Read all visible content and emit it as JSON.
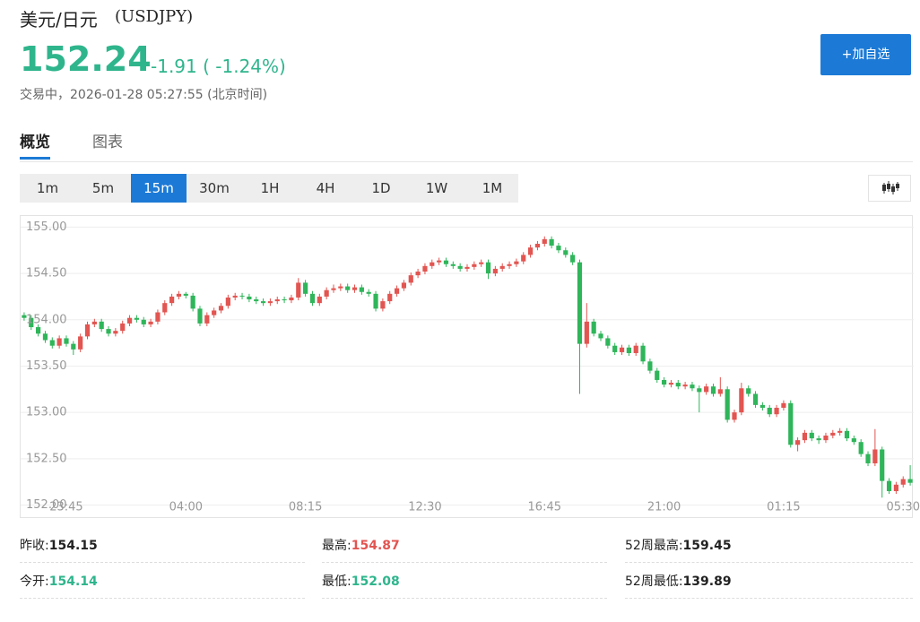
{
  "header": {
    "title": "美元/日元",
    "symbol": "(USDJPY)",
    "price": "152.24",
    "change": "-1.91 ( -1.24%)",
    "status": "交易中，2026-01-28 05:27:55 (北京时间)",
    "button": "+加自选"
  },
  "tabs": {
    "items": [
      "概览",
      "图表"
    ],
    "active": 0
  },
  "intervals": {
    "items": [
      "1m",
      "5m",
      "15m",
      "30m",
      "1H",
      "4H",
      "1D",
      "1W",
      "1M"
    ],
    "active": 2
  },
  "chart_data": {
    "type": "candlestick",
    "up_color": "#e25551",
    "down_color": "#2fb55a",
    "grid": true,
    "ylim": [
      151.85,
      155.12
    ],
    "yticks": [
      {
        "value": 152,
        "label": "152.00"
      },
      {
        "value": 152.5,
        "label": "152.50"
      },
      {
        "value": 153,
        "label": "153.00"
      },
      {
        "value": 153.5,
        "label": "153.50"
      },
      {
        "value": 154,
        "label": "154.00"
      },
      {
        "value": 154.5,
        "label": "154.50"
      },
      {
        "value": 155,
        "label": "155.00"
      }
    ],
    "categories": [
      null,
      null,
      null,
      null,
      null,
      null,
      "23:45",
      null,
      null,
      null,
      null,
      null,
      null,
      null,
      null,
      null,
      null,
      null,
      null,
      null,
      null,
      null,
      null,
      "04:00",
      null,
      null,
      null,
      null,
      null,
      null,
      null,
      null,
      null,
      null,
      null,
      null,
      null,
      null,
      null,
      null,
      "08:15",
      null,
      null,
      null,
      null,
      null,
      null,
      null,
      null,
      null,
      null,
      null,
      null,
      null,
      null,
      null,
      null,
      "12:30",
      null,
      null,
      null,
      null,
      null,
      null,
      null,
      null,
      null,
      null,
      null,
      null,
      null,
      null,
      null,
      null,
      "16:45",
      null,
      null,
      null,
      null,
      null,
      null,
      null,
      null,
      null,
      null,
      null,
      null,
      null,
      null,
      null,
      null,
      "21:00",
      null,
      null,
      null,
      null,
      null,
      null,
      null,
      null,
      null,
      null,
      null,
      null,
      null,
      null,
      null,
      null,
      "01:15",
      null,
      null,
      null,
      null,
      null,
      null,
      null,
      null,
      null,
      null,
      null,
      null,
      null,
      null,
      null,
      null,
      "05:30",
      null
    ],
    "candles": [
      [
        154.05,
        154.08,
        153.99,
        154.02
      ],
      [
        154.02,
        154.05,
        153.89,
        153.92
      ],
      [
        153.92,
        153.95,
        153.82,
        153.85
      ],
      [
        153.85,
        153.88,
        153.75,
        153.78
      ],
      [
        153.78,
        153.81,
        153.69,
        153.72
      ],
      [
        153.72,
        153.83,
        153.69,
        153.8
      ],
      [
        153.8,
        153.83,
        153.71,
        153.74
      ],
      [
        153.74,
        153.77,
        153.62,
        153.68
      ],
      [
        153.68,
        153.85,
        153.65,
        153.82
      ],
      [
        153.82,
        153.98,
        153.79,
        153.95
      ],
      [
        153.95,
        154.01,
        153.92,
        153.98
      ],
      [
        153.98,
        154.01,
        153.87,
        153.9
      ],
      [
        153.9,
        153.93,
        153.82,
        153.85
      ],
      [
        153.85,
        153.91,
        153.82,
        153.88
      ],
      [
        153.88,
        153.99,
        153.85,
        153.96
      ],
      [
        153.96,
        154.05,
        153.93,
        154.02
      ],
      [
        154.02,
        154.05,
        153.97,
        154
      ],
      [
        154,
        154.03,
        153.92,
        153.95
      ],
      [
        153.95,
        154.01,
        153.92,
        153.98
      ],
      [
        153.98,
        154.11,
        153.95,
        154.08
      ],
      [
        154.08,
        154.21,
        154.05,
        154.18
      ],
      [
        154.18,
        154.28,
        154.15,
        154.25
      ],
      [
        154.25,
        154.31,
        154.22,
        154.28
      ],
      [
        154.28,
        154.3,
        154.23,
        154.26
      ],
      [
        154.26,
        154.29,
        154.09,
        154.12
      ],
      [
        154.12,
        154.15,
        153.93,
        153.96
      ],
      [
        153.96,
        154.08,
        153.93,
        154.05
      ],
      [
        154.05,
        154.13,
        154.02,
        154.1
      ],
      [
        154.1,
        154.18,
        154.07,
        154.15
      ],
      [
        154.15,
        154.27,
        154.12,
        154.24
      ],
      [
        154.24,
        154.29,
        154.21,
        154.26
      ],
      [
        154.26,
        154.29,
        154.22,
        154.25
      ],
      [
        154.25,
        154.28,
        154.19,
        154.22
      ],
      [
        154.22,
        154.25,
        154.17,
        154.2
      ],
      [
        154.2,
        154.23,
        154.15,
        154.18
      ],
      [
        154.18,
        154.23,
        154.15,
        154.2
      ],
      [
        154.2,
        154.25,
        154.17,
        154.22
      ],
      [
        154.22,
        154.25,
        154.18,
        154.21
      ],
      [
        154.21,
        154.27,
        154.18,
        154.24
      ],
      [
        154.24,
        154.45,
        154.21,
        154.4
      ],
      [
        154.4,
        154.43,
        154.25,
        154.28
      ],
      [
        154.28,
        154.31,
        154.15,
        154.18
      ],
      [
        154.18,
        154.28,
        154.15,
        154.25
      ],
      [
        154.25,
        154.35,
        154.22,
        154.32
      ],
      [
        154.32,
        154.38,
        154.29,
        154.34
      ],
      [
        154.34,
        154.39,
        154.31,
        154.36
      ],
      [
        154.36,
        154.39,
        154.29,
        154.32
      ],
      [
        154.32,
        154.38,
        154.29,
        154.35
      ],
      [
        154.35,
        154.38,
        154.27,
        154.3
      ],
      [
        154.3,
        154.33,
        154.25,
        154.28
      ],
      [
        154.28,
        154.31,
        154.09,
        154.12
      ],
      [
        154.12,
        154.23,
        154.09,
        154.2
      ],
      [
        154.2,
        154.31,
        154.17,
        154.28
      ],
      [
        154.28,
        154.37,
        154.25,
        154.34
      ],
      [
        154.34,
        154.43,
        154.31,
        154.4
      ],
      [
        154.4,
        154.51,
        154.37,
        154.48
      ],
      [
        154.48,
        154.55,
        154.45,
        154.52
      ],
      [
        154.52,
        154.61,
        154.49,
        154.58
      ],
      [
        154.58,
        154.65,
        154.55,
        154.62
      ],
      [
        154.62,
        154.67,
        154.59,
        154.64
      ],
      [
        154.64,
        154.67,
        154.57,
        154.6
      ],
      [
        154.6,
        154.63,
        154.55,
        154.58
      ],
      [
        154.58,
        154.61,
        154.52,
        154.55
      ],
      [
        154.55,
        154.6,
        154.52,
        154.57
      ],
      [
        154.57,
        154.63,
        154.54,
        154.6
      ],
      [
        154.6,
        154.65,
        154.57,
        154.62
      ],
      [
        154.62,
        154.65,
        154.44,
        154.5
      ],
      [
        154.5,
        154.58,
        154.47,
        154.55
      ],
      [
        154.55,
        154.61,
        154.52,
        154.58
      ],
      [
        154.58,
        154.63,
        154.55,
        154.6
      ],
      [
        154.6,
        154.66,
        154.57,
        154.63
      ],
      [
        154.63,
        154.73,
        154.6,
        154.7
      ],
      [
        154.7,
        154.81,
        154.67,
        154.78
      ],
      [
        154.78,
        154.85,
        154.75,
        154.82
      ],
      [
        154.82,
        154.9,
        154.79,
        154.87
      ],
      [
        154.87,
        154.9,
        154.77,
        154.8
      ],
      [
        154.8,
        154.83,
        154.72,
        154.75
      ],
      [
        154.75,
        154.78,
        154.67,
        154.7
      ],
      [
        154.7,
        154.73,
        154.59,
        154.62
      ],
      [
        154.62,
        154.65,
        153.2,
        153.74
      ],
      [
        153.74,
        154.18,
        153.7,
        153.98
      ],
      [
        153.98,
        154.01,
        153.82,
        153.85
      ],
      [
        153.85,
        153.88,
        153.77,
        153.8
      ],
      [
        153.8,
        153.83,
        153.69,
        153.72
      ],
      [
        153.72,
        153.75,
        153.62,
        153.65
      ],
      [
        153.65,
        153.73,
        153.62,
        153.7
      ],
      [
        153.7,
        153.73,
        153.61,
        153.64
      ],
      [
        153.64,
        153.75,
        153.61,
        153.72
      ],
      [
        153.72,
        153.75,
        153.52,
        153.55
      ],
      [
        153.55,
        153.58,
        153.42,
        153.45
      ],
      [
        153.45,
        153.48,
        153.32,
        153.35
      ],
      [
        153.35,
        153.38,
        153.27,
        153.3
      ],
      [
        153.3,
        153.35,
        153.27,
        153.32
      ],
      [
        153.32,
        153.35,
        153.25,
        153.28
      ],
      [
        153.28,
        153.33,
        153.25,
        153.3
      ],
      [
        153.3,
        153.33,
        153.23,
        153.26
      ],
      [
        153.26,
        153.29,
        153,
        153.22
      ],
      [
        153.22,
        153.31,
        153.19,
        153.28
      ],
      [
        153.28,
        153.31,
        153.17,
        153.2
      ],
      [
        153.2,
        153.38,
        153.17,
        153.25
      ],
      [
        153.25,
        153.28,
        152.89,
        152.92
      ],
      [
        152.92,
        153.03,
        152.89,
        153
      ],
      [
        153,
        153.32,
        152.97,
        153.26
      ],
      [
        153.26,
        153.29,
        153.17,
        153.2
      ],
      [
        153.2,
        153.23,
        153.05,
        153.08
      ],
      [
        153.08,
        153.11,
        153.02,
        153.05
      ],
      [
        153.05,
        153.08,
        152.95,
        152.98
      ],
      [
        152.98,
        153.08,
        152.95,
        153.05
      ],
      [
        153.05,
        153.13,
        153.02,
        153.1
      ],
      [
        153.1,
        153.13,
        152.62,
        152.65
      ],
      [
        152.65,
        152.73,
        152.58,
        152.7
      ],
      [
        152.7,
        152.81,
        152.67,
        152.78
      ],
      [
        152.78,
        152.81,
        152.69,
        152.72
      ],
      [
        152.72,
        152.75,
        152.66,
        152.7
      ],
      [
        152.7,
        152.78,
        152.67,
        152.75
      ],
      [
        152.75,
        152.81,
        152.72,
        152.78
      ],
      [
        152.78,
        152.83,
        152.75,
        152.8
      ],
      [
        152.8,
        152.83,
        152.69,
        152.72
      ],
      [
        152.72,
        152.75,
        152.65,
        152.68
      ],
      [
        152.68,
        152.71,
        152.52,
        152.55
      ],
      [
        152.55,
        152.58,
        152.42,
        152.45
      ],
      [
        152.45,
        152.82,
        152.42,
        152.6
      ],
      [
        152.6,
        152.63,
        152.08,
        152.26
      ],
      [
        152.26,
        152.29,
        152.12,
        152.15
      ],
      [
        152.15,
        152.25,
        152.12,
        152.22
      ],
      [
        152.22,
        152.31,
        152.19,
        152.28
      ],
      [
        152.28,
        152.43,
        152.21,
        152.24
      ]
    ]
  },
  "stats": [
    {
      "label": "昨收:",
      "value": "154.15",
      "color": "#222222"
    },
    {
      "label": "最高:",
      "value": "154.87",
      "color": "#e25551"
    },
    {
      "label": "52周最高:",
      "value": "159.45",
      "color": "#222222"
    },
    {
      "label": "今开:",
      "value": "154.14",
      "color": "#2fb58c"
    },
    {
      "label": "最低:",
      "value": "152.08",
      "color": "#2fb58c"
    },
    {
      "label": "52周最低:",
      "value": "139.89",
      "color": "#222222"
    }
  ]
}
